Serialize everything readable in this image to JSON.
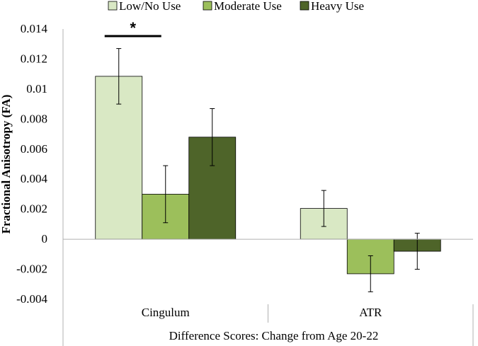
{
  "chart_data": {
    "type": "bar",
    "categories": [
      "Cingulum",
      "ATR"
    ],
    "series": [
      {
        "name": "Low/No Use",
        "color": "#d9e8c4",
        "values": [
          0.01085,
          0.00205
        ],
        "errors": [
          0.00185,
          0.0012
        ]
      },
      {
        "name": "Moderate Use",
        "color": "#9cbf5b",
        "values": [
          0.003,
          -0.0023
        ],
        "errors": [
          0.0019,
          0.0012
        ]
      },
      {
        "name": "Heavy Use",
        "color": "#4e6429",
        "values": [
          0.0068,
          -0.0008
        ],
        "errors": [
          0.0019,
          0.0012
        ]
      }
    ],
    "ylabel": "Fractional Anisotropy (FA)",
    "xlabel": "Difference Scores: Change from Age 20-22",
    "ylim": [
      -0.004,
      0.014
    ],
    "yticks": [
      "0.014",
      "0.012",
      "0.01",
      "0.008",
      "0.006",
      "0.004",
      "0.002",
      "0",
      "-0.002",
      "-0.004"
    ],
    "ytick_values": [
      0.014,
      0.012,
      0.01,
      0.008,
      0.006,
      0.004,
      0.002,
      0,
      -0.002,
      -0.004
    ],
    "legend_position": "top",
    "grid": false,
    "annotation": {
      "text": "*",
      "category": "Cingulum",
      "series": [
        "Low/No Use",
        "Moderate Use"
      ]
    }
  }
}
